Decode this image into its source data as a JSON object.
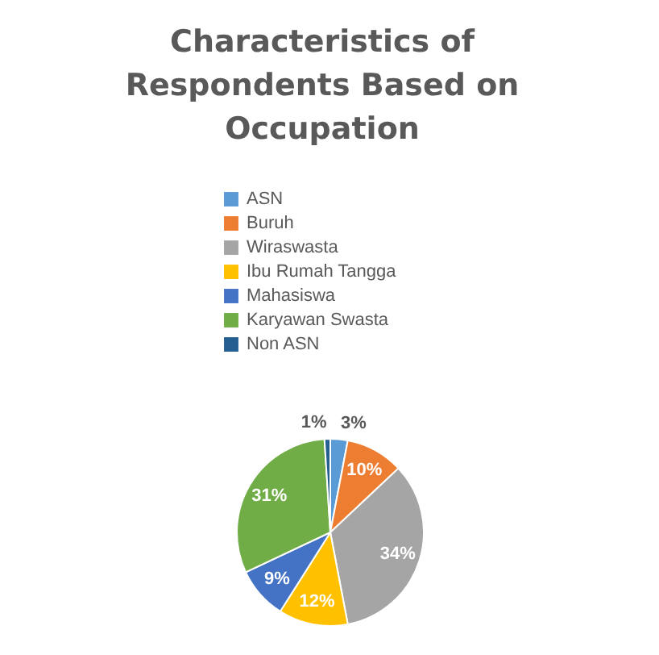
{
  "chart_data": {
    "type": "pie",
    "title": "Characteristics of Respondents Based on Occupation",
    "categories": [
      "ASN",
      "Buruh",
      "Wiraswasta",
      "Ibu Rumah Tangga",
      "Mahasiswa",
      "Karyawan Swasta",
      "Non ASN"
    ],
    "values": [
      3,
      10,
      34,
      12,
      9,
      31,
      1
    ],
    "value_labels": [
      "3%",
      "10%",
      "34%",
      "12%",
      "9%",
      "31%",
      "1%"
    ],
    "colors": [
      "#5b9bd5",
      "#ed7d31",
      "#a5a5a5",
      "#ffc000",
      "#4472c4",
      "#70ad47",
      "#255e91"
    ],
    "legend": "top"
  }
}
